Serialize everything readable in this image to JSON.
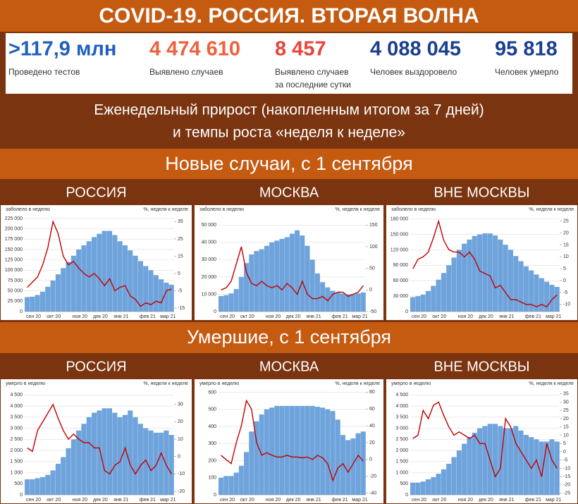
{
  "title": "COVID-19. РОССИЯ. ВТОРАЯ ВОЛНА",
  "stats": [
    {
      "value": ">117,9 млн",
      "label": [
        "Проведено тестов"
      ],
      "color": "#1f5fbf"
    },
    {
      "value": "4 474 610",
      "label": [
        "Выявлено случаев"
      ],
      "color": "#f0603c"
    },
    {
      "value": "8 457",
      "label": [
        "Выявлено случаев",
        "за последние сутки"
      ],
      "color": "#e8453c"
    },
    {
      "value": "4 088 045",
      "label": [
        "Человек выздоровело"
      ],
      "color": "#1a3f8f"
    },
    {
      "value": "95 818",
      "label": [
        "Человек умерло"
      ],
      "color": "#1a3f8f"
    }
  ],
  "subtitle": [
    "Еженедельный прирост (накопленным итогом за 7 дней)",
    "и темпы роста «неделя к неделе»"
  ],
  "sections": [
    "Новые случаи, с 1 сентября",
    "Умершие, с 1 сентября"
  ],
  "chart_data": [
    {
      "type": "bar_line",
      "title": "РОССИЯ",
      "y_label": "заболело в неделю",
      "y2_label": "%, неделя к неделе",
      "categories": [
        "сен 20",
        null,
        null,
        null,
        "окт 20",
        null,
        null,
        null,
        null,
        "ноя 20",
        null,
        null,
        null,
        "дек 20",
        null,
        null,
        null,
        "янв 21",
        null,
        null,
        null,
        null,
        "фев 21",
        null,
        null,
        null,
        "мар 21",
        null,
        null
      ],
      "series": [
        {
          "name": "заболело в неделю",
          "color": "#6fa3dc",
          "values": [
            35000,
            36000,
            40000,
            48000,
            60000,
            75000,
            90000,
            105000,
            120000,
            135000,
            150000,
            160000,
            170000,
            180000,
            188000,
            195000,
            195000,
            185000,
            170000,
            160000,
            148000,
            135000,
            122000,
            110000,
            100000,
            88000,
            78000,
            70000,
            65000
          ]
        },
        {
          "name": "%, неделя к неделе",
          "color": "#c00000",
          "axis": "y2",
          "values": [
            -3,
            0,
            3,
            10,
            20,
            35,
            28,
            15,
            10,
            12,
            8,
            5,
            3,
            5,
            2,
            -2,
            2,
            -5,
            -3,
            -2,
            -8,
            -10,
            -14,
            -12,
            -13,
            -11,
            -12,
            -5,
            -4
          ]
        }
      ],
      "ylim": [
        0,
        230000
      ],
      "yticks": [
        0,
        {
          "value": 25000,
          "label": "25 000"
        },
        {
          "value": 50000,
          "label": "50 000"
        },
        {
          "value": 75000,
          "label": "75 000"
        },
        {
          "value": 100000,
          "label": "100 000"
        },
        {
          "value": 125000,
          "label": "125 000"
        },
        {
          "value": 150000,
          "label": "150 000"
        },
        {
          "value": 175000,
          "label": "175 000"
        },
        {
          "value": 200000,
          "label": "200 000"
        },
        {
          "value": 225000,
          "label": "225 000"
        }
      ],
      "y2lim": [
        -17,
        38
      ],
      "y2ticks": [
        -15,
        -5,
        5,
        15,
        25,
        35
      ],
      "grid": true
    },
    {
      "type": "bar_line",
      "title": "МОСКВА",
      "y_label": "заболело в неделю",
      "y2_label": "%, неделя к неделе",
      "categories": [
        "сен 20",
        null,
        null,
        null,
        "окт 20",
        null,
        null,
        null,
        null,
        "ноя 20",
        null,
        null,
        null,
        "дек 20",
        null,
        null,
        null,
        "янв 21",
        null,
        null,
        null,
        null,
        "фев 21",
        null,
        null,
        null,
        "мар 21",
        null,
        null
      ],
      "series": [
        {
          "name": "заболело в неделю",
          "color": "#6fa3dc",
          "values": [
            9000,
            9500,
            10500,
            13000,
            20000,
            28000,
            33000,
            35000,
            36000,
            38000,
            40000,
            41000,
            42000,
            43000,
            45000,
            47000,
            44000,
            38000,
            30000,
            22000,
            17000,
            14000,
            12000,
            11000,
            10500,
            10000,
            10000,
            10500,
            11000
          ]
        },
        {
          "name": "%, неделя к неделе",
          "color": "#c00000",
          "axis": "y2",
          "values": [
            0,
            5,
            20,
            60,
            100,
            40,
            15,
            10,
            20,
            10,
            5,
            10,
            0,
            15,
            5,
            -10,
            20,
            -10,
            -20,
            -20,
            -15,
            -25,
            -10,
            -5,
            -5,
            -15,
            -10,
            -5,
            10
          ]
        }
      ],
      "ylim": [
        0,
        55000
      ],
      "yticks": [
        0,
        {
          "value": 10000,
          "label": "10 000"
        },
        {
          "value": 20000,
          "label": "20 000"
        },
        {
          "value": 30000,
          "label": "30 000"
        },
        {
          "value": 40000,
          "label": "40 000"
        },
        {
          "value": 50000,
          "label": "50 000"
        }
      ],
      "y2lim": [
        -50,
        170
      ],
      "y2ticks": [
        -50,
        0,
        50,
        100,
        150
      ],
      "grid": true
    },
    {
      "type": "bar_line",
      "title": "ВНЕ МОСКВЫ",
      "y_label": "заболело в неделю",
      "y2_label": "%, неделя к неделе",
      "categories": [
        "сен 20",
        null,
        null,
        null,
        "окт 20",
        null,
        null,
        null,
        null,
        "ноя 20",
        null,
        null,
        null,
        "дек 20",
        null,
        null,
        null,
        "янв 21",
        null,
        null,
        null,
        null,
        "фев 21",
        null,
        null,
        null,
        "мар 21",
        null,
        null
      ],
      "series": [
        {
          "name": "заболело в неделю",
          "color": "#6fa3dc",
          "values": [
            28000,
            30000,
            33000,
            40000,
            50000,
            62000,
            75000,
            90000,
            105000,
            120000,
            132000,
            140000,
            147000,
            150000,
            152000,
            152000,
            148000,
            140000,
            130000,
            120000,
            108000,
            98000,
            88000,
            80000,
            72000,
            65000,
            58000,
            52000,
            48000
          ]
        },
        {
          "name": "%, неделя к неделе",
          "color": "#c00000",
          "axis": "y2",
          "values": [
            5,
            9,
            10,
            12,
            18,
            25,
            17,
            13,
            12,
            12,
            10,
            12,
            9,
            4,
            3,
            2,
            -3,
            -2,
            -5,
            -8,
            -8,
            -9,
            -10,
            -10,
            -11,
            -10,
            -11,
            -8,
            -6
          ]
        }
      ],
      "ylim": [
        0,
        185000
      ],
      "yticks": [
        0,
        {
          "value": 30000,
          "label": "30 000"
        },
        {
          "value": 60000,
          "label": "60 000"
        },
        {
          "value": 90000,
          "label": "90 000"
        },
        {
          "value": 120000,
          "label": "120 000"
        },
        {
          "value": 150000,
          "label": "150 000"
        },
        {
          "value": 180000,
          "label": "180 000"
        }
      ],
      "y2lim": [
        -13,
        27
      ],
      "y2ticks": [
        -10,
        -5,
        0,
        5,
        10,
        15,
        20,
        25
      ],
      "grid": true
    },
    {
      "type": "bar_line",
      "title": "РОССИЯ",
      "y_label": "умерло в неделю",
      "y2_label": "%, неделя к неделе",
      "categories": [
        "сен 20",
        null,
        null,
        null,
        "окт 20",
        null,
        null,
        null,
        null,
        "ноя 20",
        null,
        null,
        null,
        "дек 20",
        null,
        null,
        null,
        "янв 21",
        null,
        null,
        null,
        null,
        "фев 21",
        null,
        null,
        null,
        "мар 21",
        null,
        null
      ],
      "series": [
        {
          "name": "умерло в неделю",
          "color": "#6fa3dc",
          "values": [
            700,
            700,
            750,
            800,
            900,
            1100,
            1400,
            1700,
            2100,
            2500,
            2900,
            3200,
            3500,
            3700,
            3800,
            3900,
            3900,
            3700,
            3500,
            3600,
            3800,
            3500,
            3200,
            3000,
            2900,
            2800,
            2800,
            2900,
            2700
          ]
        },
        {
          "name": "%, неделя к неделе",
          "color": "#c00000",
          "axis": "y2",
          "values": [
            5,
            3,
            15,
            20,
            25,
            30,
            22,
            15,
            10,
            13,
            10,
            8,
            8,
            5,
            5,
            -8,
            -10,
            -5,
            -3,
            5,
            -5,
            -10,
            -5,
            -2,
            -8,
            -5,
            2,
            -5,
            -10
          ]
        }
      ],
      "ylim": [
        0,
        4700
      ],
      "yticks": [
        0,
        500,
        {
          "value": 1000,
          "label": "1 000"
        },
        {
          "value": 1500,
          "label": "1 500"
        },
        {
          "value": 2000,
          "label": "2 000"
        },
        {
          "value": 2500,
          "label": "2 500"
        },
        {
          "value": 3000,
          "label": "3 000"
        },
        {
          "value": 3500,
          "label": "3 500"
        },
        {
          "value": 4000,
          "label": "4 000"
        },
        {
          "value": 4500,
          "label": "4 500"
        }
      ],
      "y2lim": [
        -22,
        38
      ],
      "y2ticks": [
        -20,
        -10,
        0,
        10,
        20,
        30
      ],
      "grid": true
    },
    {
      "type": "bar_line",
      "title": "МОСКВА",
      "y_label": "умерло в неделю",
      "y2_label": "%, неделя к неделе",
      "categories": [
        "сен 20",
        null,
        null,
        null,
        "окт 20",
        null,
        null,
        null,
        null,
        "ноя 20",
        null,
        null,
        null,
        "дек 20",
        null,
        null,
        null,
        "янв 21",
        null,
        null,
        null,
        null,
        "фев 21",
        null,
        null,
        null,
        "мар 21",
        null,
        null
      ],
      "series": [
        {
          "name": "умерло в неделю",
          "color": "#6fa3dc",
          "values": [
            100,
            110,
            110,
            130,
            170,
            250,
            370,
            430,
            470,
            500,
            510,
            520,
            520,
            520,
            520,
            520,
            520,
            520,
            520,
            515,
            510,
            500,
            490,
            440,
            350,
            320,
            330,
            360,
            370
          ]
        },
        {
          "name": "%, неделя к неделе",
          "color": "#c00000",
          "axis": "y2",
          "values": [
            5,
            0,
            -5,
            20,
            40,
            70,
            60,
            20,
            5,
            8,
            5,
            3,
            3,
            5,
            3,
            3,
            2,
            3,
            0,
            5,
            2,
            -5,
            -25,
            -10,
            -5,
            -15,
            -5,
            5,
            -2
          ]
        }
      ],
      "ylim": [
        0,
        610
      ],
      "yticks": [
        0,
        100,
        200,
        300,
        400,
        500,
        600
      ],
      "y2lim": [
        -42,
        82
      ],
      "y2ticks": [
        -40,
        -20,
        0,
        20,
        40,
        60,
        80
      ],
      "grid": true
    },
    {
      "type": "bar_line",
      "title": "ВНЕ МОСКВЫ",
      "y_label": "умерло в неделю",
      "y2_label": "%, неделя к неделе",
      "categories": [
        "сен 20",
        null,
        null,
        null,
        "окт 20",
        null,
        null,
        null,
        null,
        "ноя 20",
        null,
        null,
        null,
        "дек 20",
        null,
        null,
        null,
        "янв 21",
        null,
        null,
        null,
        null,
        "фев 21",
        null,
        null,
        null,
        "мар 21",
        null,
        null
      ],
      "series": [
        {
          "name": "умерло в неделю",
          "color": "#6fa3dc",
          "values": [
            550,
            550,
            600,
            700,
            800,
            950,
            1150,
            1400,
            1700,
            2000,
            2300,
            2600,
            2800,
            3000,
            3100,
            3200,
            3200,
            3100,
            3000,
            3000,
            3100,
            2900,
            2700,
            2600,
            2500,
            2400,
            2400,
            2500,
            2400
          ]
        },
        {
          "name": "%, неделя к неделе",
          "color": "#c00000",
          "axis": "y2",
          "values": [
            8,
            10,
            25,
            20,
            28,
            30,
            22,
            15,
            10,
            12,
            10,
            8,
            10,
            5,
            5,
            -5,
            -15,
            -10,
            20,
            15,
            5,
            0,
            -5,
            -10,
            -5,
            -15,
            5,
            -5,
            -10
          ]
        }
      ],
      "ylim": [
        0,
        4700
      ],
      "yticks": [
        0,
        500,
        {
          "value": 1000,
          "label": "1 000"
        },
        {
          "value": 1500,
          "label": "1 500"
        },
        {
          "value": 2000,
          "label": "2 000"
        },
        {
          "value": 2500,
          "label": "2 500"
        },
        {
          "value": 3000,
          "label": "3 000"
        },
        {
          "value": 3500,
          "label": "3 500"
        },
        {
          "value": 4000,
          "label": "4 000"
        },
        {
          "value": 4500,
          "label": "4 500"
        }
      ],
      "y2lim": [
        -26,
        37
      ],
      "y2ticks": [
        -25,
        -20,
        -15,
        -10,
        -5,
        0,
        5,
        10,
        15,
        20,
        25,
        30,
        35
      ],
      "grid": true
    }
  ]
}
